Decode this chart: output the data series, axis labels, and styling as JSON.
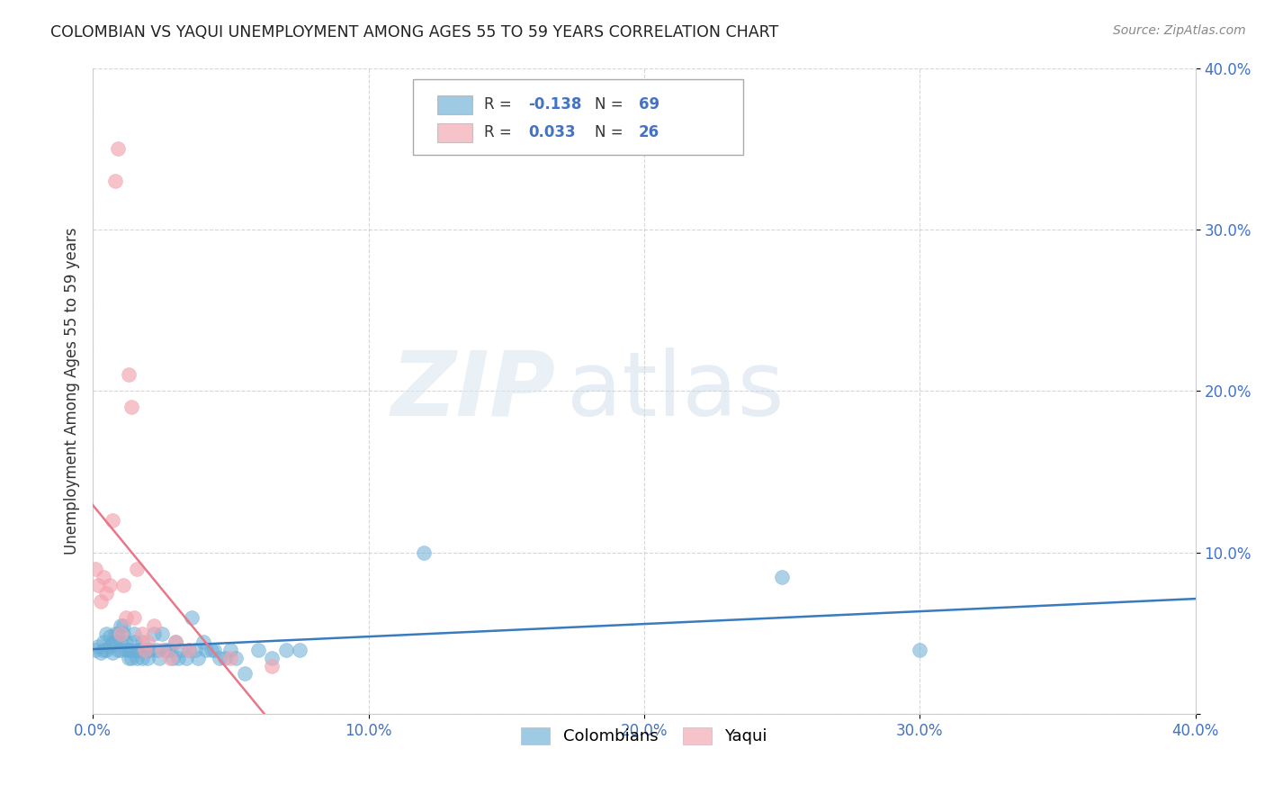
{
  "title": "COLOMBIAN VS YAQUI UNEMPLOYMENT AMONG AGES 55 TO 59 YEARS CORRELATION CHART",
  "source": "Source: ZipAtlas.com",
  "ylabel": "Unemployment Among Ages 55 to 59 years",
  "xlim": [
    0.0,
    0.4
  ],
  "ylim": [
    0.0,
    0.4
  ],
  "colombian_color": "#6baed6",
  "yaqui_color": "#f4a4b0",
  "colombian_line_color": "#3a7bbf",
  "yaqui_line_color": "#e8778a",
  "colombian_R": -0.138,
  "colombian_N": 69,
  "yaqui_R": 0.033,
  "yaqui_N": 26,
  "background_color": "#ffffff",
  "grid_color": "#cccccc",
  "watermark_zip": "ZIP",
  "watermark_atlas": "atlas",
  "colombian_x": [
    0.001,
    0.002,
    0.003,
    0.004,
    0.004,
    0.005,
    0.005,
    0.006,
    0.006,
    0.007,
    0.007,
    0.008,
    0.008,
    0.009,
    0.009,
    0.01,
    0.01,
    0.01,
    0.011,
    0.011,
    0.012,
    0.012,
    0.013,
    0.013,
    0.014,
    0.014,
    0.015,
    0.015,
    0.016,
    0.016,
    0.017,
    0.018,
    0.018,
    0.019,
    0.02,
    0.02,
    0.021,
    0.022,
    0.023,
    0.024,
    0.025,
    0.026,
    0.027,
    0.028,
    0.029,
    0.03,
    0.031,
    0.032,
    0.034,
    0.035,
    0.036,
    0.037,
    0.038,
    0.04,
    0.041,
    0.043,
    0.044,
    0.046,
    0.048,
    0.05,
    0.052,
    0.055,
    0.06,
    0.065,
    0.07,
    0.075,
    0.12,
    0.25,
    0.3
  ],
  "colombian_y": [
    0.04,
    0.042,
    0.038,
    0.045,
    0.04,
    0.05,
    0.04,
    0.048,
    0.042,
    0.044,
    0.038,
    0.05,
    0.045,
    0.04,
    0.05,
    0.055,
    0.045,
    0.04,
    0.055,
    0.05,
    0.04,
    0.045,
    0.035,
    0.04,
    0.035,
    0.04,
    0.045,
    0.05,
    0.035,
    0.04,
    0.04,
    0.035,
    0.045,
    0.04,
    0.035,
    0.04,
    0.04,
    0.05,
    0.04,
    0.035,
    0.05,
    0.04,
    0.04,
    0.04,
    0.035,
    0.045,
    0.035,
    0.04,
    0.035,
    0.04,
    0.06,
    0.04,
    0.035,
    0.045,
    0.04,
    0.04,
    0.04,
    0.035,
    0.035,
    0.04,
    0.035,
    0.025,
    0.04,
    0.035,
    0.04,
    0.04,
    0.1,
    0.085,
    0.04
  ],
  "yaqui_x": [
    0.001,
    0.002,
    0.003,
    0.004,
    0.005,
    0.006,
    0.007,
    0.008,
    0.009,
    0.01,
    0.011,
    0.012,
    0.013,
    0.014,
    0.015,
    0.016,
    0.018,
    0.019,
    0.02,
    0.022,
    0.025,
    0.028,
    0.03,
    0.035,
    0.05,
    0.065
  ],
  "yaqui_y": [
    0.09,
    0.08,
    0.07,
    0.085,
    0.075,
    0.08,
    0.12,
    0.33,
    0.35,
    0.05,
    0.08,
    0.06,
    0.21,
    0.19,
    0.06,
    0.09,
    0.05,
    0.04,
    0.045,
    0.055,
    0.04,
    0.035,
    0.045,
    0.04,
    0.035,
    0.03
  ]
}
